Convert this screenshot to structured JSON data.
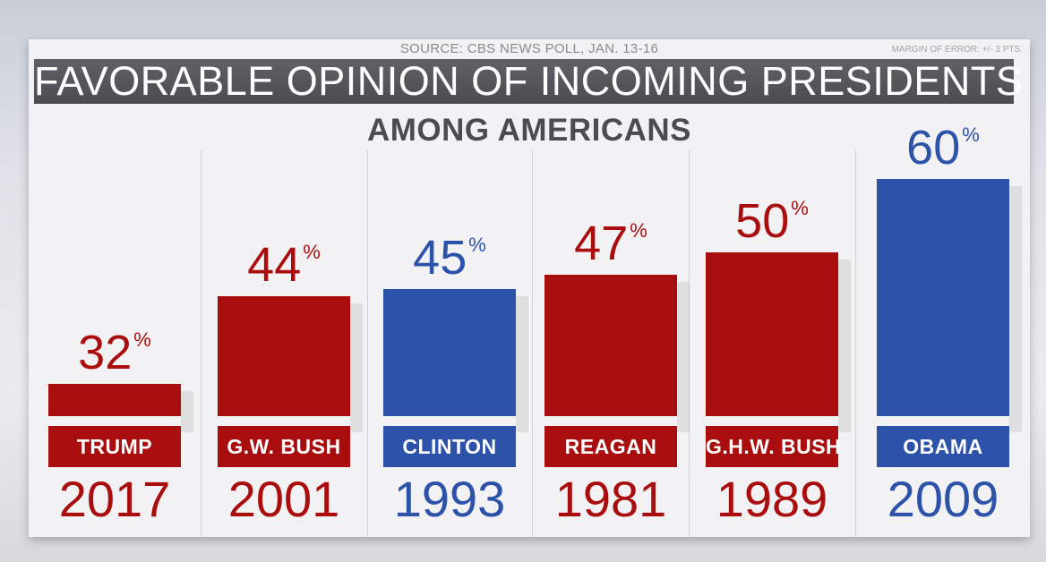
{
  "header": {
    "source": "SOURCE: CBS NEWS POLL, JAN. 13-16",
    "margin_of_error": "MARGIN OF ERROR: +/- 3 PTS.",
    "title": "FAVORABLE OPINION OF INCOMING PRESIDENTS",
    "subtitle": "AMONG AMERICANS"
  },
  "colors": {
    "republican": "#aa0d0d",
    "democrat": "#2d52aa"
  },
  "chart_data": {
    "type": "bar",
    "title": "FAVORABLE OPINION OF INCOMING PRESIDENTS",
    "subtitle": "AMONG AMERICANS",
    "xlabel": "",
    "ylabel": "",
    "categories": [
      "2017",
      "2001",
      "1993",
      "1981",
      "1989",
      "2009"
    ],
    "presidents": [
      "TRUMP",
      "G.W. BUSH",
      "CLINTON",
      "REAGAN",
      "G.H.W. BUSH",
      "OBAMA"
    ],
    "values": [
      32,
      44,
      45,
      47,
      50,
      60
    ],
    "value_unit": "%",
    "party": [
      "R",
      "R",
      "D",
      "R",
      "R",
      "D"
    ],
    "grid": false,
    "legend": "none"
  }
}
